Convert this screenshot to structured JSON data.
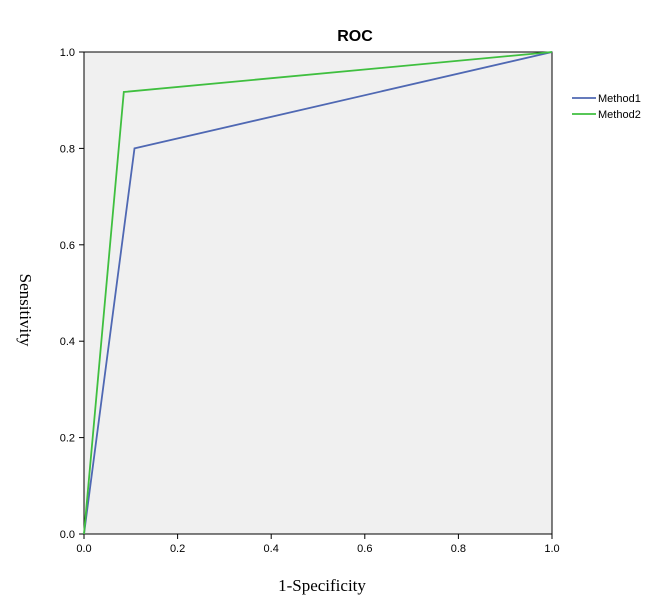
{
  "chart_data": {
    "type": "line",
    "title": "ROC",
    "xlabel": "1-Specificity",
    "ylabel": "Sensitivity",
    "xlim": [
      0,
      1
    ],
    "ylim": [
      0,
      1
    ],
    "x_ticks": [
      "0.0",
      "0.2",
      "0.4",
      "0.6",
      "0.8",
      "1.0"
    ],
    "y_ticks": [
      "0.0",
      "0.2",
      "0.4",
      "0.6",
      "0.8",
      "1.0"
    ],
    "grid": false,
    "legend_position": "right",
    "series": [
      {
        "name": "Method1",
        "color": "#4f68b3",
        "x": [
          0.0,
          0.108,
          1.0
        ],
        "y": [
          0.0,
          0.8,
          1.0
        ]
      },
      {
        "name": "Method2",
        "color": "#3fbf3f",
        "x": [
          0.0,
          0.085,
          1.0
        ],
        "y": [
          0.0,
          0.917,
          1.0
        ]
      }
    ],
    "plot_background": "#f0f0f0"
  }
}
